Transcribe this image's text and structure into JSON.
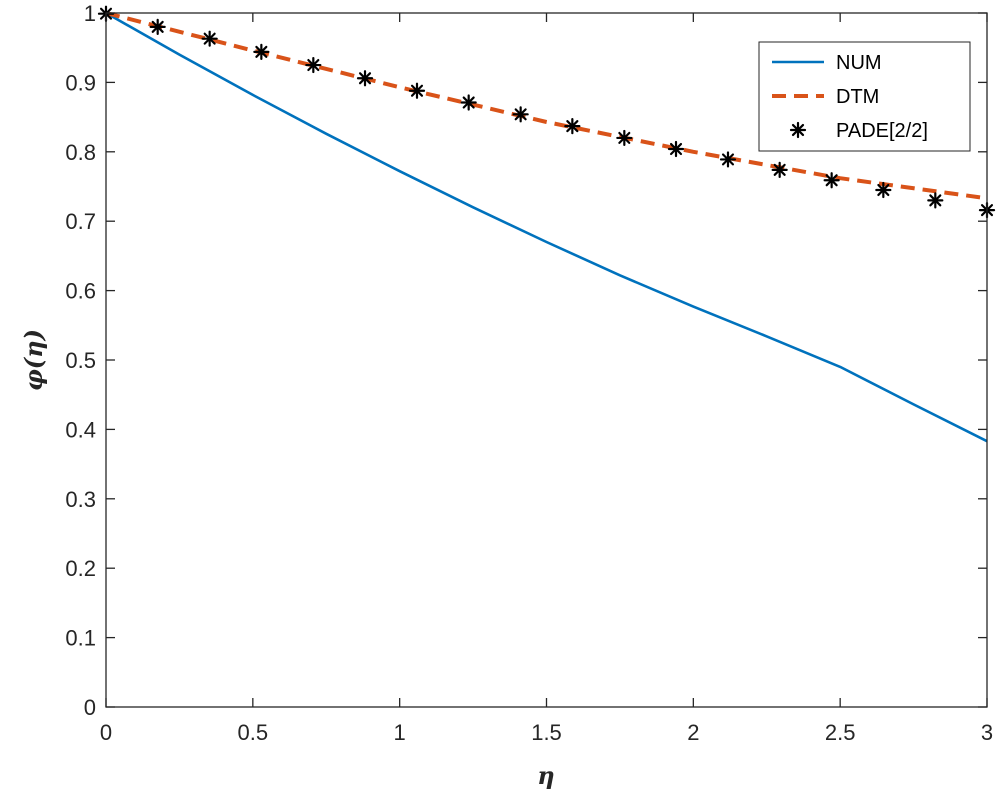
{
  "chart_data": {
    "type": "line",
    "title": "",
    "xlabel": "η",
    "ylabel": "φ(η)",
    "xlim": [
      0,
      3
    ],
    "ylim": [
      0,
      1
    ],
    "xticks": [
      0,
      0.5,
      1,
      1.5,
      2,
      2.5,
      3
    ],
    "xtick_labels": [
      "0",
      "0.5",
      "1",
      "1.5",
      "2",
      "2.5",
      "3"
    ],
    "yticks": [
      0,
      0.1,
      0.2,
      0.3,
      0.4,
      0.5,
      0.6,
      0.7,
      0.8,
      0.9,
      1
    ],
    "ytick_labels": [
      "0",
      "0.1",
      "0.2",
      "0.3",
      "0.4",
      "0.5",
      "0.6",
      "0.7",
      "0.8",
      "0.9",
      "1"
    ],
    "grid": false,
    "legend_position": "top-right",
    "series": [
      {
        "name": "NUM",
        "style": "solid",
        "color": "#0072BD",
        "x": [
          0,
          0.25,
          0.5,
          0.75,
          1,
          1.25,
          1.5,
          1.75,
          2,
          2.25,
          2.5,
          2.75,
          3
        ],
        "y": [
          1.0,
          0.94,
          0.882,
          0.826,
          0.772,
          0.72,
          0.67,
          0.622,
          0.577,
          0.534,
          0.49,
          0.436,
          0.383
        ]
      },
      {
        "name": "DTM",
        "style": "dashed",
        "color": "#D95319",
        "x": [
          0,
          0.5,
          1,
          1.5,
          2,
          2.5,
          3
        ],
        "y": [
          1.0,
          0.946,
          0.893,
          0.843,
          0.8,
          0.762,
          0.733
        ]
      },
      {
        "name": "PADE[2/2]",
        "style": "markers",
        "marker": "asterisk",
        "color": "#000000",
        "x": [
          0,
          0.176,
          0.353,
          0.529,
          0.706,
          0.882,
          1.059,
          1.235,
          1.412,
          1.588,
          1.765,
          1.941,
          2.118,
          2.294,
          2.471,
          2.647,
          2.824,
          3.0
        ],
        "y": [
          0.999,
          0.98,
          0.963,
          0.944,
          0.925,
          0.906,
          0.888,
          0.871,
          0.854,
          0.837,
          0.82,
          0.804,
          0.789,
          0.774,
          0.759,
          0.745,
          0.73,
          0.716
        ]
      }
    ]
  }
}
